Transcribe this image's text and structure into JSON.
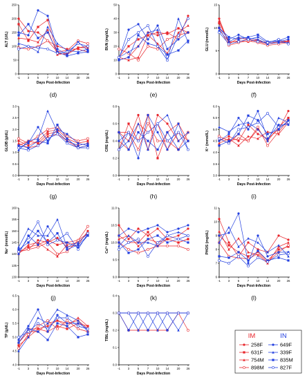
{
  "x_ticks": [
    "-1",
    "3",
    "5",
    "7",
    "10",
    "14",
    "20",
    "26"
  ],
  "x_label": "Days Post-Infection",
  "legend": {
    "im_title": "IM",
    "in_title": "IN",
    "im_color": "#e8252b",
    "in_color": "#2340e0",
    "im_items": [
      "258F",
      "631F",
      "754M",
      "898M"
    ],
    "in_items": [
      "649F",
      "339F",
      "835M",
      "827F"
    ]
  },
  "chart_data": [
    {
      "panel": "(d)",
      "type": "line",
      "ylabel": "ALT (U/L)",
      "ylim": [
        0,
        250
      ],
      "yticks": [
        0,
        50,
        100,
        150,
        200,
        250
      ],
      "im": [
        [
          200,
          155,
          150,
          120,
          100,
          90,
          90,
          80
        ],
        [
          180,
          120,
          170,
          195,
          75,
          70,
          95,
          100
        ],
        [
          130,
          125,
          115,
          160,
          70,
          75,
          95,
          95
        ],
        [
          95,
          90,
          100,
          120,
          80,
          85,
          120,
          110
        ]
      ],
      "in": [
        [
          150,
          140,
          230,
          210,
          90,
          70,
          115,
          85
        ],
        [
          110,
          100,
          80,
          170,
          110,
          85,
          80,
          90
        ],
        [
          140,
          180,
          130,
          150,
          80,
          65,
          75,
          80
        ],
        [
          90,
          100,
          95,
          90,
          75,
          80,
          110,
          100
        ]
      ]
    },
    {
      "panel": "(e)",
      "type": "line",
      "ylabel": "BUN (mg/dL)",
      "ylim": [
        0,
        50
      ],
      "yticks": [
        0,
        10,
        20,
        30,
        40,
        50
      ],
      "im": [
        [
          10,
          12,
          20,
          30,
          28,
          30,
          25,
          42
        ],
        [
          12,
          20,
          25,
          28,
          30,
          29,
          33,
          30
        ],
        [
          12,
          10,
          12,
          28,
          22,
          15,
          30,
          35
        ],
        [
          18,
          15,
          10,
          20,
          18,
          25,
          28,
          30
        ]
      ],
      "in": [
        [
          11,
          32,
          36,
          25,
          35,
          18,
          25,
          30
        ],
        [
          12,
          16,
          20,
          30,
          32,
          10,
          40,
          23
        ],
        [
          10,
          12,
          28,
          22,
          20,
          14,
          17,
          24
        ],
        [
          12,
          25,
          30,
          35,
          20,
          10,
          28,
          40
        ]
      ]
    },
    {
      "panel": "(f)",
      "type": "line",
      "ylabel": "GLU (mmol/L)",
      "ylim": [
        0,
        15
      ],
      "yticks": [
        0,
        5,
        10,
        15
      ],
      "im": [
        [
          12,
          6.5,
          7.8,
          7.5,
          7,
          6.5,
          7,
          7.2
        ],
        [
          11,
          7,
          7,
          7.5,
          7.2,
          6.8,
          7,
          7
        ],
        [
          11.5,
          6.8,
          7.2,
          7,
          7.5,
          6.5,
          6.8,
          7
        ],
        [
          10,
          6.2,
          6.8,
          7.2,
          6.8,
          6.2,
          6.5,
          6.8
        ]
      ],
      "in": [
        [
          10,
          7.5,
          8.5,
          7.5,
          8,
          6.8,
          7,
          7.5
        ],
        [
          9.5,
          7,
          8,
          7.8,
          7.5,
          6.5,
          6.8,
          6.8
        ],
        [
          10,
          8,
          7.5,
          8,
          8.5,
          7,
          7.2,
          8
        ],
        [
          9,
          6.5,
          7,
          7.5,
          7,
          6.8,
          7.5,
          6.5
        ]
      ]
    },
    {
      "panel": "(g)",
      "type": "line",
      "ylabel": "GLOB (g/dL)",
      "ylim": [
        0,
        3
      ],
      "yticks": [
        0.0,
        0.5,
        1.0,
        1.5,
        2.0,
        2.5,
        3.0
      ],
      "im": [
        [
          1.5,
          1.3,
          1.5,
          1.9,
          2,
          1.6,
          1.4,
          1.5
        ],
        [
          1.3,
          1.5,
          1.4,
          1.8,
          1.9,
          1.5,
          1.3,
          1.4
        ],
        [
          1.4,
          1.2,
          1.3,
          1.7,
          1.8,
          1.5,
          1.2,
          1.3
        ],
        [
          1.6,
          1.4,
          1.7,
          2,
          2.1,
          1.7,
          1.5,
          1.6
        ]
      ],
      "in": [
        [
          1.2,
          1.4,
          2.1,
          1.5,
          2,
          1.8,
          1.4,
          1.3
        ],
        [
          1.1,
          1.5,
          1.6,
          2.8,
          1.9,
          1.5,
          1.3,
          1.4
        ],
        [
          1.3,
          1.2,
          1.5,
          1.4,
          2.2,
          1.6,
          1.2,
          1.3
        ],
        [
          1.2,
          1.1,
          1.3,
          1.6,
          1.8,
          1.4,
          1.2,
          1.2
        ]
      ]
    },
    {
      "panel": "(h)",
      "type": "line",
      "ylabel": "CRE (mg/dL)",
      "ylim": [
        0,
        0.8
      ],
      "yticks": [
        0.0,
        0.2,
        0.4,
        0.6,
        0.8
      ],
      "im": [
        [
          0.5,
          0.4,
          0.7,
          0.3,
          0.7,
          0.6,
          0.4,
          0.5
        ],
        [
          0.3,
          0.6,
          0.4,
          0.7,
          0.2,
          0.5,
          0.6,
          0.4
        ],
        [
          0.4,
          0.3,
          0.6,
          0.5,
          0.6,
          0.3,
          0.5,
          0.4
        ],
        [
          0.5,
          0.5,
          0.3,
          0.6,
          0.4,
          0.4,
          0.3,
          0.5
        ]
      ],
      "in": [
        [
          0.4,
          0.5,
          0.2,
          0.7,
          0.5,
          0.3,
          0.6,
          0.3
        ],
        [
          0.3,
          0.4,
          0.6,
          0.3,
          0.6,
          0.7,
          0.4,
          0.5
        ],
        [
          0.5,
          0.3,
          0.5,
          0.4,
          0.3,
          0.5,
          0.3,
          0.4
        ],
        [
          0.3,
          0.5,
          0.4,
          0.5,
          0.6,
          0.4,
          0.5,
          0.3
        ]
      ]
    },
    {
      "panel": "(i)",
      "type": "line",
      "ylabel": "K⁺ (mmol/L)",
      "ylim": [
        3,
        6
      ],
      "yticks": [
        3.0,
        3.5,
        4.0,
        4.5,
        5.0,
        5.5,
        6.0
      ],
      "im": [
        [
          4.5,
          4.7,
          4.5,
          5.2,
          4.8,
          4.6,
          5,
          5.8
        ],
        [
          4.6,
          4.4,
          4.8,
          4.5,
          5,
          4.5,
          5.1,
          5.5
        ],
        [
          4.4,
          4.6,
          4.3,
          4.7,
          4.6,
          4.9,
          4.8,
          5.3
        ],
        [
          4.7,
          4.5,
          4.6,
          4.5,
          5.1,
          4.3,
          4.9,
          5.4
        ]
      ],
      "in": [
        [
          4.5,
          4.8,
          5.5,
          5,
          5.8,
          4.6,
          5.2,
          5.2
        ],
        [
          5.1,
          4.9,
          5.2,
          5.3,
          5,
          4.5,
          5.5,
          5.3
        ],
        [
          4.3,
          4.5,
          4.8,
          5.6,
          5.4,
          4.8,
          5,
          5.4
        ],
        [
          4.6,
          4.4,
          5,
          5.1,
          5.3,
          5.7,
          5.1,
          5.3
        ]
      ]
    },
    {
      "panel": "(j)",
      "type": "line",
      "ylabel": "Na⁺ (mmol/L)",
      "ylim": [
        130,
        160
      ],
      "yticks": [
        130,
        135,
        140,
        145,
        150,
        155,
        160
      ],
      "im": [
        [
          141,
          142,
          146,
          145,
          147,
          143,
          144,
          150
        ],
        [
          141,
          143,
          144,
          146,
          144,
          145,
          146,
          149
        ],
        [
          140,
          144,
          145,
          142,
          139,
          144,
          145,
          149
        ],
        [
          141,
          142,
          143,
          145,
          140,
          141,
          146,
          152
        ]
      ],
      "in": [
        [
          140,
          148,
          144,
          152,
          146,
          145,
          143,
          148
        ],
        [
          143,
          151,
          148,
          148,
          155,
          143,
          145,
          149
        ],
        [
          142,
          145,
          150,
          145,
          149,
          142,
          144,
          148
        ],
        [
          141,
          147,
          154,
          144,
          146,
          149,
          142,
          149
        ]
      ]
    },
    {
      "panel": "(k)",
      "type": "line",
      "ylabel": "Ca²⁺ (mg/dL)",
      "ylim": [
        9,
        11
      ],
      "yticks": [
        9.0,
        9.5,
        10.0,
        10.5,
        11.0
      ],
      "im": [
        [
          10.5,
          10.1,
          10.4,
          10.2,
          10.4,
          10.1,
          10.2,
          10.4
        ],
        [
          10.2,
          10.0,
          10.0,
          10.3,
          9.9,
          10.1,
          10.0,
          10.1
        ],
        [
          10.1,
          10.2,
          9.9,
          10.1,
          10.0,
          10.1,
          10.0,
          10.1
        ],
        [
          10.0,
          9.8,
          9.7,
          9.8,
          9.9,
          9.9,
          9.9,
          9.8
        ]
      ],
      "in": [
        [
          10.2,
          10.4,
          10.3,
          10.4,
          10.5,
          10.3,
          10.4,
          10.5
        ],
        [
          9.9,
          10.2,
          10.0,
          10.0,
          9.9,
          10.2,
          10.3,
          10.2
        ],
        [
          10.0,
          9.7,
          9.8,
          10.1,
          10.2,
          10.0,
          10.1,
          10.0
        ],
        [
          9.8,
          10.0,
          10.1,
          9.6,
          10.0,
          10.2,
          10.1,
          10.2
        ]
      ]
    },
    {
      "panel": "(l)",
      "type": "line",
      "ylabel": "PHOS (mg/dL)",
      "ylim": [
        6,
        11
      ],
      "yticks": [
        6,
        7,
        8,
        9,
        10,
        11
      ],
      "im": [
        [
          10.2,
          8.5,
          7.5,
          8.5,
          8,
          7.8,
          9,
          8.7
        ],
        [
          9,
          8.3,
          7.8,
          7.5,
          7.8,
          7.2,
          8,
          8.2
        ],
        [
          9.3,
          8,
          8.8,
          7.8,
          7.6,
          7,
          8.2,
          8.5
        ],
        [
          8.5,
          7.5,
          7.4,
          7.3,
          7.7,
          7.1,
          7.8,
          8.3
        ]
      ],
      "in": [
        [
          9,
          9.2,
          10.6,
          7,
          9,
          7.5,
          7.8,
          7.8
        ],
        [
          8.5,
          9.6,
          8.2,
          8.8,
          8.5,
          7.8,
          8.3,
          7.5
        ],
        [
          7.5,
          7.4,
          7.8,
          7.2,
          7.9,
          7.2,
          7.4,
          7.2
        ],
        [
          7.2,
          7,
          7.5,
          6.8,
          7.4,
          7.1,
          7.6,
          7.7
        ]
      ]
    },
    {
      "panel": "(m)",
      "type": "line",
      "ylabel": "TP (g/dL)",
      "ylim": [
        4,
        6.5
      ],
      "yticks": [
        4.0,
        4.5,
        5.0,
        5.5,
        6.0,
        6.5
      ],
      "im": [
        [
          4.8,
          5.3,
          5.3,
          5.4,
          5.6,
          5.5,
          5.6,
          5.3
        ],
        [
          4.7,
          5.0,
          5.3,
          5.2,
          5.4,
          5.3,
          5.5,
          5.4
        ],
        [
          4.8,
          5.2,
          5.2,
          5.5,
          5.6,
          5.4,
          5.7,
          5.4
        ],
        [
          4.6,
          5.1,
          5.4,
          5.6,
          5.3,
          5.6,
          5.3,
          5.2
        ]
      ],
      "in": [
        [
          4.9,
          5.4,
          6.0,
          5.2,
          5.8,
          5.5,
          5.5,
          5.3
        ],
        [
          4.5,
          5.0,
          5.7,
          5.5,
          6.0,
          5.8,
          5.6,
          5.2
        ],
        [
          4.8,
          5.3,
          5.2,
          4.9,
          5.5,
          5.4,
          5.0,
          5.1
        ],
        [
          5.0,
          5.2,
          5.5,
          5.3,
          5.7,
          5.7,
          5.4,
          5.3
        ]
      ]
    },
    {
      "panel": "(n)",
      "type": "line",
      "ylabel": "TBIL (mg/dL)",
      "ylim": [
        0,
        0.4
      ],
      "yticks": [
        0.0,
        0.1,
        0.2,
        0.3,
        0.4
      ],
      "im": [
        [
          0.3,
          0.3,
          0.3,
          0.3,
          0.3,
          0.3,
          0.3,
          0.3
        ],
        [
          0.3,
          0.3,
          0.3,
          0.3,
          0.3,
          0.3,
          0.3,
          0.3
        ],
        [
          0.3,
          0.3,
          0.3,
          0.3,
          0.3,
          0.3,
          0.3,
          0.3
        ],
        [
          0.3,
          0.2,
          0.2,
          0.2,
          0.2,
          0.2,
          0.3,
          0.2
        ]
      ],
      "in": [
        [
          0.3,
          0.3,
          0.3,
          0.3,
          0.3,
          0.3,
          0.3,
          0.3
        ],
        [
          0.3,
          0.3,
          0.2,
          0.3,
          0.2,
          0.3,
          0.2,
          0.3
        ],
        [
          0.3,
          0.2,
          0.3,
          0.2,
          0.3,
          0.2,
          0.3,
          0.3
        ],
        [
          0.3,
          0.3,
          0.3,
          0.3,
          0.3,
          0.3,
          0.3,
          0.3
        ]
      ]
    }
  ]
}
